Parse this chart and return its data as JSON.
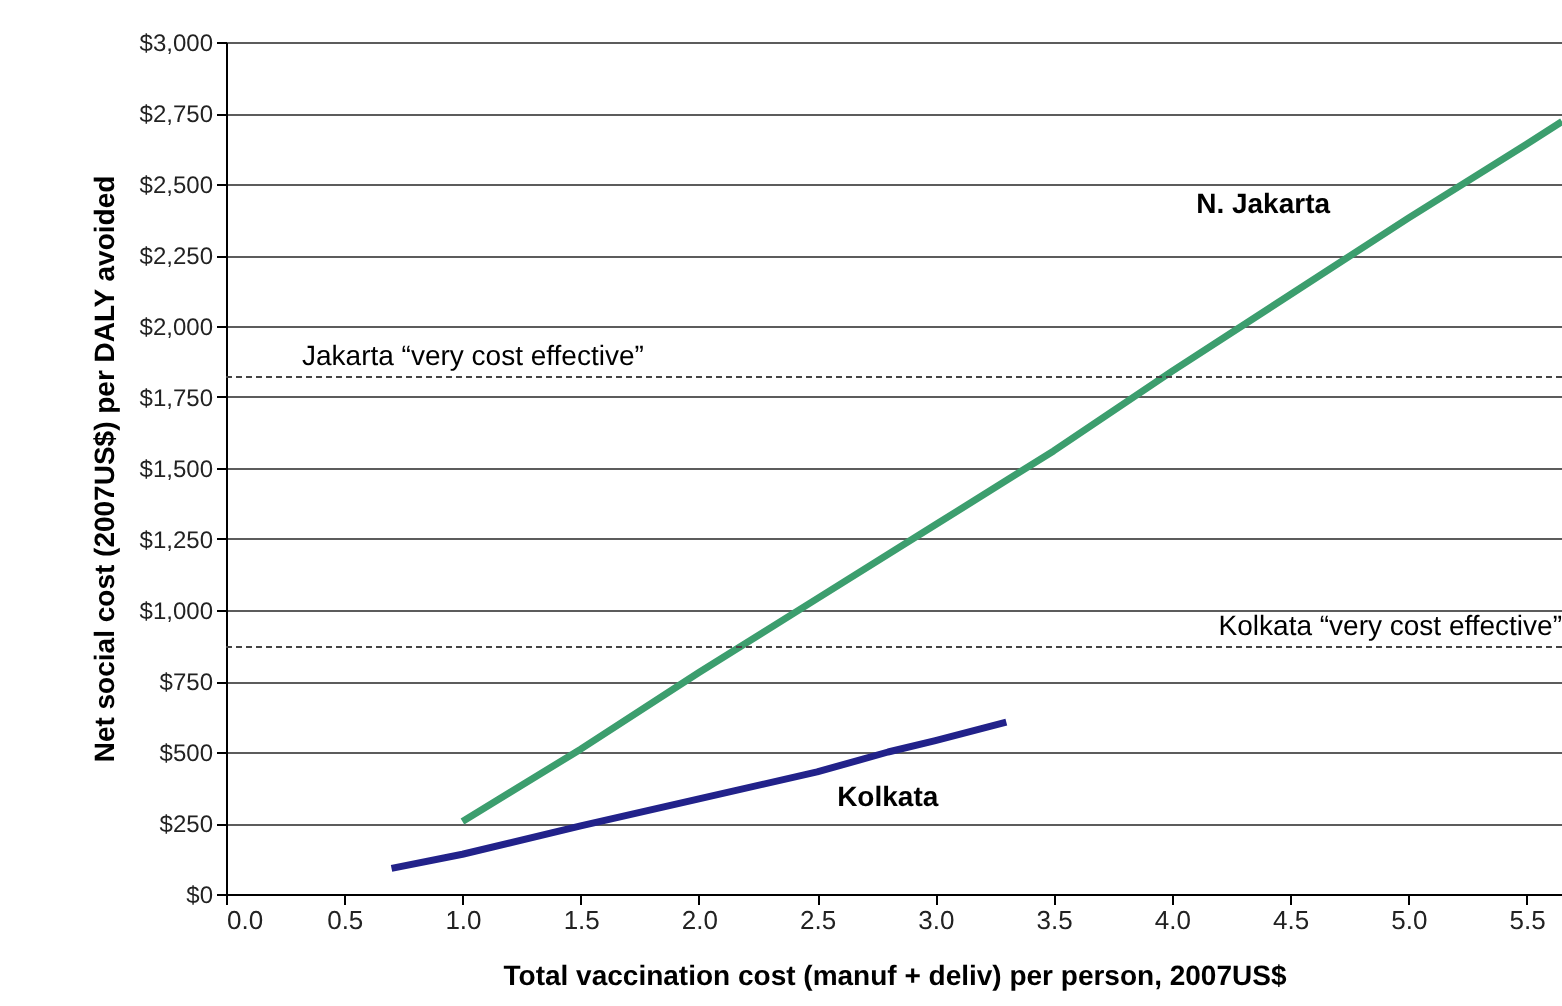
{
  "chart_data": {
    "type": "line",
    "xlabel": "Total vaccination cost (manuf + deliv) per person, 2007US$",
    "ylabel": "Net social cost (2007US$) per DALY avoided",
    "xlim": [
      0,
      5.65
    ],
    "xticks": [
      {
        "value": 0,
        "label": "0.0"
      },
      {
        "value": 0.5,
        "label": "0.5"
      },
      {
        "value": 1,
        "label": "1.0"
      },
      {
        "value": 1.5,
        "label": "1.5"
      },
      {
        "value": 2,
        "label": "2.0"
      },
      {
        "value": 2.5,
        "label": "2.5"
      },
      {
        "value": 3,
        "label": "3.0"
      },
      {
        "value": 3.5,
        "label": "3.5"
      },
      {
        "value": 4,
        "label": "4.0"
      },
      {
        "value": 4.5,
        "label": "4.5"
      },
      {
        "value": 5,
        "label": "5.0"
      },
      {
        "value": 5.5,
        "label": "5.5"
      }
    ],
    "ylim": [
      0,
      3000
    ],
    "yticks": [
      {
        "value": 0,
        "label": "$0"
      },
      {
        "value": 250,
        "label": "$250"
      },
      {
        "value": 500,
        "label": "$500"
      },
      {
        "value": 750,
        "label": "$750"
      },
      {
        "value": 1000,
        "label": "$1,000"
      },
      {
        "value": 1250,
        "label": "$1,250"
      },
      {
        "value": 1500,
        "label": "$1,500"
      },
      {
        "value": 1750,
        "label": "$1,750"
      },
      {
        "value": 2000,
        "label": "$2,000"
      },
      {
        "value": 2250,
        "label": "$2,250"
      },
      {
        "value": 2500,
        "label": "$2,500"
      },
      {
        "value": 2750,
        "label": "$2,750"
      },
      {
        "value": 3000,
        "label": "$3,000"
      }
    ],
    "grid": "y",
    "legend": false,
    "marker": "none",
    "line_style": "solid",
    "series": [
      {
        "name": "N. Jakarta",
        "color": "#3c9e6e",
        "x": [
          1.0,
          1.5,
          2.0,
          2.5,
          3.0,
          3.5,
          4.0,
          4.5,
          5.0,
          5.5,
          5.65
        ],
        "values": [
          255,
          510,
          780,
          1040,
          1300,
          1560,
          1840,
          2110,
          2380,
          2640,
          2720
        ]
      },
      {
        "name": "Kolkata",
        "color": "#22228a",
        "x": [
          0.7,
          1.0,
          1.5,
          2.0,
          2.5,
          2.8,
          3.0,
          3.3
        ],
        "values": [
          90,
          140,
          240,
          335,
          430,
          500,
          540,
          605
        ]
      }
    ],
    "ref_lines": [
      {
        "axis": "y",
        "value": 1820,
        "label": "Jakarta “very cost effective”",
        "line_style": "dashed"
      },
      {
        "axis": "y",
        "value": 870,
        "label": "Kolkata “very cost effective”",
        "line_style": "dashed"
      }
    ]
  }
}
